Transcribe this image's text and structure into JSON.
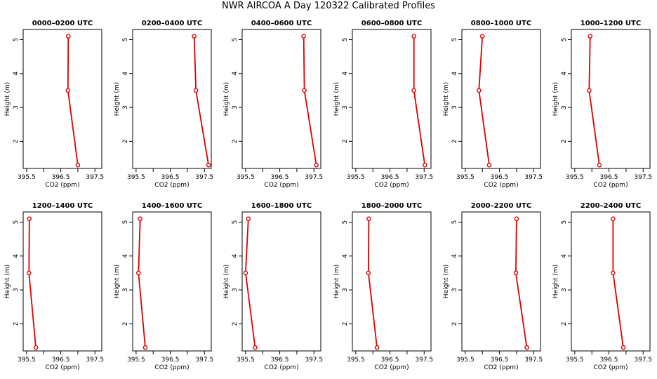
{
  "title": "NWR AIRCOA A  Day 120322  Calibrated Profiles",
  "chart_data": [
    {
      "type": "line",
      "title": "0000–0200 UTC",
      "xlabel": "CO2 (ppm)",
      "ylabel": "Height (m)",
      "xlim": [
        395.4,
        397.7
      ],
      "ylim": [
        1.2,
        5.3
      ],
      "xticks": [
        "395.5",
        "396.5",
        "397.5"
      ],
      "yticks": [
        "2",
        "3",
        "4",
        "5"
      ],
      "series": [
        {
          "x": [
            396.72,
            396.71,
            397.0
          ],
          "y": [
            5.1,
            3.5,
            1.3
          ],
          "color": "#dd0000"
        }
      ]
    },
    {
      "type": "line",
      "title": "0200–0400 UTC",
      "xlabel": "CO2 (ppm)",
      "ylabel": "Height (m)",
      "xlim": [
        395.4,
        397.7
      ],
      "ylim": [
        1.2,
        5.3
      ],
      "xticks": [
        "395.5",
        "396.5",
        "397.5"
      ],
      "yticks": [
        "2",
        "3",
        "4",
        "5"
      ],
      "series": [
        {
          "x": [
            397.2,
            397.25,
            397.62
          ],
          "y": [
            5.1,
            3.5,
            1.3
          ],
          "color": "#dd0000"
        }
      ]
    },
    {
      "type": "line",
      "title": "0400–0600 UTC",
      "xlabel": "CO2 (ppm)",
      "ylabel": "Height (m)",
      "xlim": [
        395.4,
        397.7
      ],
      "ylim": [
        1.2,
        5.3
      ],
      "xticks": [
        "395.5",
        "396.5",
        "397.5"
      ],
      "yticks": [
        "2",
        "3",
        "4",
        "5"
      ],
      "series": [
        {
          "x": [
            397.2,
            397.22,
            397.57
          ],
          "y": [
            5.1,
            3.5,
            1.3
          ],
          "color": "#dd0000"
        }
      ]
    },
    {
      "type": "line",
      "title": "0600–0800 UTC",
      "xlabel": "CO2 (ppm)",
      "ylabel": "Height (m)",
      "xlim": [
        395.4,
        397.7
      ],
      "ylim": [
        1.2,
        5.3
      ],
      "xticks": [
        "395.5",
        "396.5",
        "397.5"
      ],
      "yticks": [
        "2",
        "3",
        "4",
        "5"
      ],
      "series": [
        {
          "x": [
            397.2,
            397.2,
            397.52
          ],
          "y": [
            5.1,
            3.5,
            1.3
          ],
          "color": "#dd0000"
        }
      ]
    },
    {
      "type": "line",
      "title": "0800–1000 UTC",
      "xlabel": "CO2 (ppm)",
      "ylabel": "Height (m)",
      "xlim": [
        395.4,
        397.7
      ],
      "ylim": [
        1.2,
        5.3
      ],
      "xticks": [
        "395.5",
        "396.5",
        "397.5"
      ],
      "yticks": [
        "2",
        "3",
        "4",
        "5"
      ],
      "series": [
        {
          "x": [
            396.0,
            395.9,
            396.2
          ],
          "y": [
            5.1,
            3.5,
            1.3
          ],
          "color": "#dd0000"
        }
      ]
    },
    {
      "type": "line",
      "title": "1000–1200 UTC",
      "xlabel": "CO2 (ppm)",
      "ylabel": "Height (m)",
      "xlim": [
        395.4,
        397.7
      ],
      "ylim": [
        1.2,
        5.3
      ],
      "xticks": [
        "395.5",
        "396.5",
        "397.5"
      ],
      "yticks": [
        "2",
        "3",
        "4",
        "5"
      ],
      "series": [
        {
          "x": [
            395.95,
            395.92,
            396.22
          ],
          "y": [
            5.1,
            3.5,
            1.3
          ],
          "color": "#dd0000"
        }
      ]
    },
    {
      "type": "line",
      "title": "1200–1400 UTC",
      "xlabel": "CO2 (ppm)",
      "ylabel": "Height (m)",
      "xlim": [
        395.4,
        397.7
      ],
      "ylim": [
        1.2,
        5.3
      ],
      "xticks": [
        "395.5",
        "396.5",
        "397.5"
      ],
      "yticks": [
        "2",
        "3",
        "4",
        "5"
      ],
      "series": [
        {
          "x": [
            395.58,
            395.57,
            395.77
          ],
          "y": [
            5.1,
            3.5,
            1.3
          ],
          "color": "#dd0000"
        }
      ]
    },
    {
      "type": "line",
      "title": "1400–1600 UTC",
      "xlabel": "CO2 (ppm)",
      "ylabel": "Height (m)",
      "xlim": [
        395.4,
        397.7
      ],
      "ylim": [
        1.2,
        5.3
      ],
      "xticks": [
        "395.5",
        "396.5",
        "397.5"
      ],
      "yticks": [
        "2",
        "3",
        "4",
        "5"
      ],
      "series": [
        {
          "x": [
            395.62,
            395.57,
            395.77
          ],
          "y": [
            5.1,
            3.5,
            1.3
          ],
          "color": "#dd0000"
        }
      ]
    },
    {
      "type": "line",
      "title": "1600–1800 UTC",
      "xlabel": "CO2 (ppm)",
      "ylabel": "Height (m)",
      "xlim": [
        395.4,
        397.7
      ],
      "ylim": [
        1.2,
        5.3
      ],
      "xticks": [
        "395.5",
        "396.5",
        "397.5"
      ],
      "yticks": [
        "2",
        "3",
        "4",
        "5"
      ],
      "series": [
        {
          "x": [
            395.58,
            395.5,
            395.78
          ],
          "y": [
            5.1,
            3.5,
            1.3
          ],
          "color": "#dd0000"
        }
      ]
    },
    {
      "type": "line",
      "title": "1800–2000 UTC",
      "xlabel": "CO2 (ppm)",
      "ylabel": "Height (m)",
      "xlim": [
        395.4,
        397.7
      ],
      "ylim": [
        1.2,
        5.3
      ],
      "xticks": [
        "395.5",
        "396.5",
        "397.5"
      ],
      "yticks": [
        "2",
        "3",
        "4",
        "5"
      ],
      "series": [
        {
          "x": [
            395.88,
            395.87,
            396.12
          ],
          "y": [
            5.1,
            3.5,
            1.3
          ],
          "color": "#dd0000"
        }
      ]
    },
    {
      "type": "line",
      "title": "2000–2200 UTC",
      "xlabel": "CO2 (ppm)",
      "ylabel": "Height (m)",
      "xlim": [
        395.4,
        397.7
      ],
      "ylim": [
        1.2,
        5.3
      ],
      "xticks": [
        "395.5",
        "396.5",
        "397.5"
      ],
      "yticks": [
        "2",
        "3",
        "4",
        "5"
      ],
      "series": [
        {
          "x": [
            397.0,
            396.98,
            397.3
          ],
          "y": [
            5.1,
            3.5,
            1.3
          ],
          "color": "#dd0000"
        }
      ]
    },
    {
      "type": "line",
      "title": "2200–2400 UTC",
      "xlabel": "CO2 (ppm)",
      "ylabel": "Height (m)",
      "xlim": [
        395.4,
        397.7
      ],
      "ylim": [
        1.2,
        5.3
      ],
      "xticks": [
        "395.5",
        "396.5",
        "397.5"
      ],
      "yticks": [
        "2",
        "3",
        "4",
        "5"
      ],
      "series": [
        {
          "x": [
            396.62,
            396.62,
            396.92
          ],
          "y": [
            5.1,
            3.5,
            1.3
          ],
          "color": "#dd0000"
        }
      ]
    }
  ]
}
